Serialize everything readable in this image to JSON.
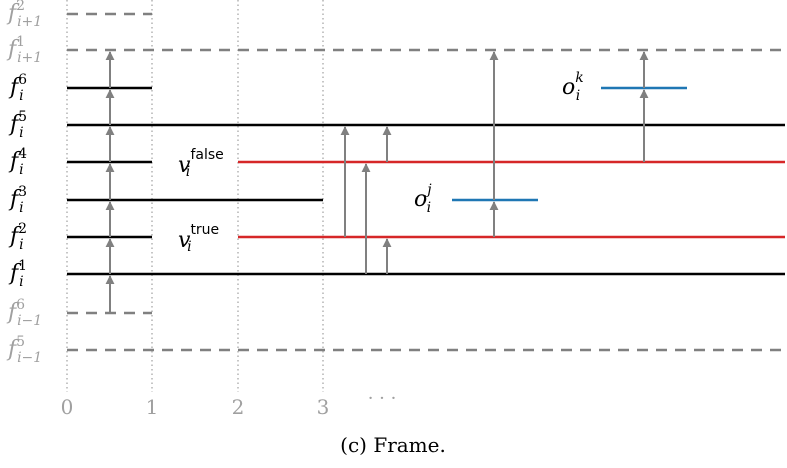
{
  "caption": "(c) Frame.",
  "x_axis": {
    "ticks": [
      "0",
      "1",
      "2",
      "3"
    ],
    "ellipsis": "· · ·"
  },
  "levels": [
    {
      "id": "f_ip1_2",
      "base": "f",
      "sup": "2",
      "sub": "i+1"
    },
    {
      "id": "f_ip1_1",
      "base": "f",
      "sup": "1",
      "sub": "i+1"
    },
    {
      "id": "f_i_6",
      "base": "f",
      "sup": "6",
      "sub": "i"
    },
    {
      "id": "f_i_5",
      "base": "f",
      "sup": "5",
      "sub": "i"
    },
    {
      "id": "f_i_4",
      "base": "f",
      "sup": "4",
      "sub": "i"
    },
    {
      "id": "f_i_3",
      "base": "f",
      "sup": "3",
      "sub": "i"
    },
    {
      "id": "f_i_2",
      "base": "f",
      "sup": "2",
      "sub": "i"
    },
    {
      "id": "f_i_1",
      "base": "f",
      "sup": "1",
      "sub": "i"
    },
    {
      "id": "f_im1_6",
      "base": "f",
      "sup": "6",
      "sub": "i−1"
    },
    {
      "id": "f_im1_5",
      "base": "f",
      "sup": "5",
      "sub": "i−1"
    }
  ],
  "value_labels": [
    {
      "id": "v_false",
      "base": "v",
      "sup": "false",
      "sub": "i"
    },
    {
      "id": "v_true",
      "base": "v",
      "sup": "true",
      "sub": "i"
    }
  ],
  "observation_labels": [
    {
      "id": "o_j",
      "base": "o",
      "sup": "j",
      "sub": "i"
    },
    {
      "id": "o_k",
      "base": "o",
      "sup": "k",
      "sub": "i"
    }
  ],
  "colors": {
    "solid": "#000000",
    "dashed": "#808080",
    "value_line": "#d62728",
    "observation_line": "#1f77b4",
    "arrow": "#808080",
    "grid": "#a0a0a0",
    "faded_label": "#a0a0a0"
  }
}
